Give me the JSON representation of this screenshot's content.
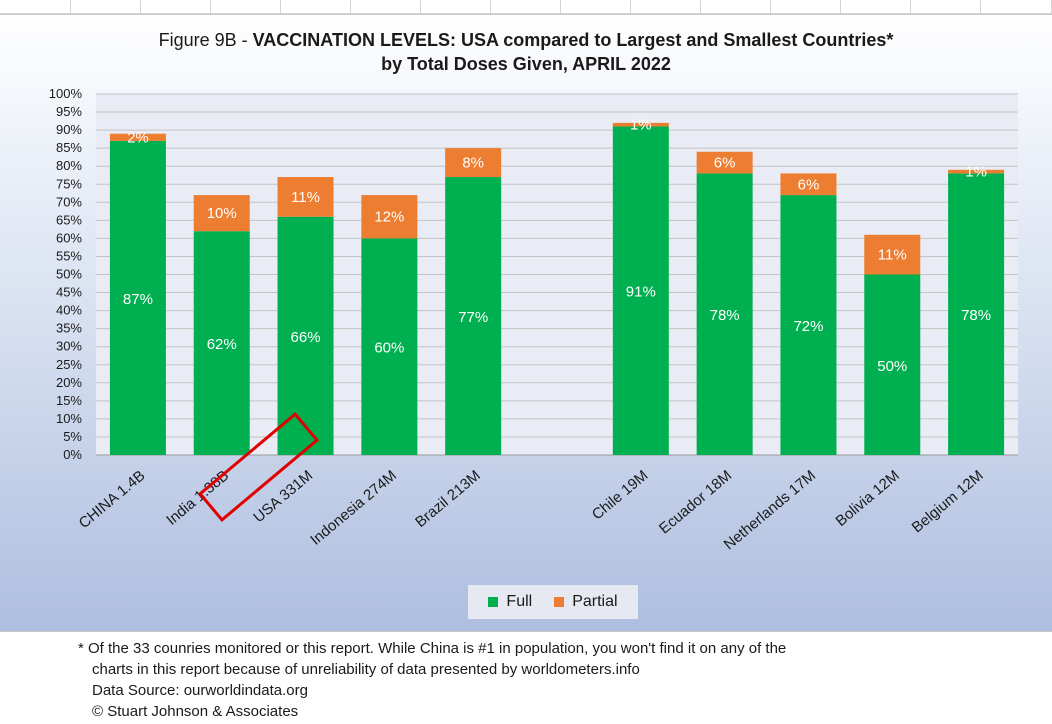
{
  "chart_data": {
    "type": "bar",
    "stacked": true,
    "title_prefix": "Figure 9B - ",
    "title_bold": "VACCINATION LEVELS:  USA compared to Largest and Smallest Countries*",
    "subtitle": "by Total Doses Given, APRIL 2022",
    "categories": [
      "CHINA  1.4B",
      "India 1.38B",
      "USA 331M",
      "Indonesia 274M",
      "Brazil 213M",
      "Chile 19M",
      "Ecuador 18M",
      "Netherlands 17M",
      "Bolivia 12M",
      "Belgium 12M"
    ],
    "series": [
      {
        "name": "Full",
        "values": [
          87,
          62,
          66,
          60,
          77,
          91,
          78,
          72,
          50,
          78
        ],
        "labels": [
          "87%",
          "62%",
          "66%",
          "60%",
          "77%",
          "91%",
          "78%",
          "72%",
          "50%",
          "78%"
        ]
      },
      {
        "name": "Partial",
        "values": [
          2,
          10,
          11,
          12,
          8,
          1,
          6,
          6,
          11,
          1
        ],
        "labels": [
          "2%",
          "10%",
          "11%",
          "12%",
          "8%",
          "1%",
          "6%",
          "6%",
          "11%",
          "1%"
        ]
      }
    ],
    "yticks": [
      "0%",
      "5%",
      "10%",
      "15%",
      "20%",
      "25%",
      "30%",
      "35%",
      "40%",
      "45%",
      "50%",
      "55%",
      "60%",
      "65%",
      "70%",
      "75%",
      "80%",
      "85%",
      "90%",
      "95%",
      "100%"
    ],
    "ylim": [
      0,
      100
    ],
    "grid": true,
    "legend_position": "bottom",
    "highlighted_category": "USA 331M",
    "colors": {
      "Full": "#00b050",
      "Partial": "#ed7d31",
      "highlight": "#e00000"
    }
  },
  "footnote": {
    "line1": "* Of the 33 counries monitored or this report. While China is #1 in population, you won't find it on any of the",
    "line2": "charts in this report because of unreliability of data presented by worldometers.info",
    "line3": "Data Source:  ourworldindata.org",
    "line4": "© Stuart Johnson & Associates"
  }
}
